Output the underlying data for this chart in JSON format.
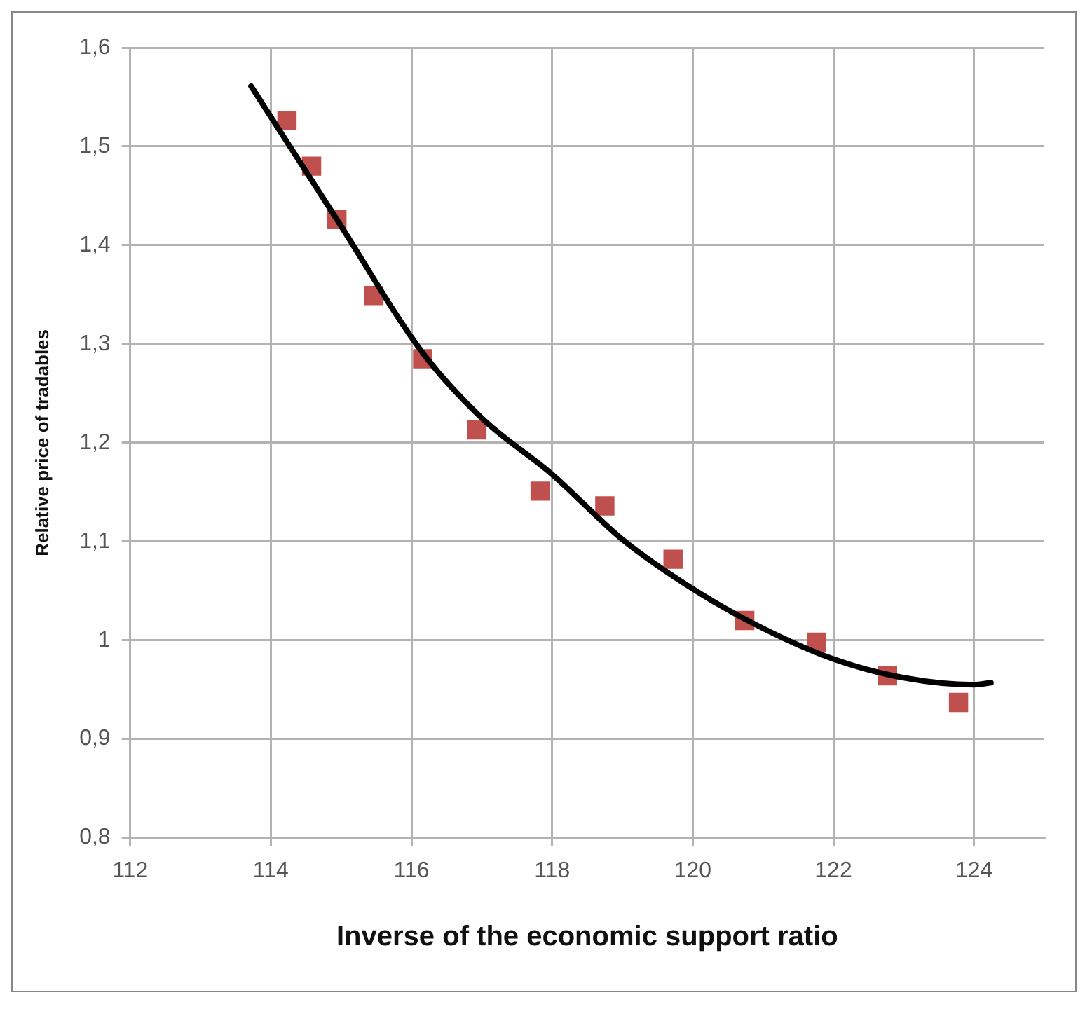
{
  "chart_data": {
    "type": "scatter",
    "xlabel": "Inverse of the economic support ratio",
    "ylabel": "Relative price of tradables",
    "xlim": [
      112,
      125
    ],
    "xticks": [
      112,
      114,
      116,
      118,
      120,
      122,
      124
    ],
    "ylim": [
      0.8,
      1.6
    ],
    "yticks": [
      {
        "value": 0.8,
        "label": "0,8"
      },
      {
        "value": 0.9,
        "label": "0,9"
      },
      {
        "value": 1,
        "label": "1"
      },
      {
        "value": 1.1,
        "label": "1,1"
      },
      {
        "value": 1.2,
        "label": "1,2"
      },
      {
        "value": 1.3,
        "label": "1,3"
      },
      {
        "value": 1.4,
        "label": "1,4"
      },
      {
        "value": 1.5,
        "label": "1,5"
      },
      {
        "value": 1.6,
        "label": "1,6"
      }
    ],
    "grid": true,
    "marker": "square",
    "series": [
      {
        "type": "scatter",
        "color": "#c0504d",
        "x": [
          114.23,
          114.58,
          114.94,
          115.46,
          116.16,
          116.93,
          117.83,
          118.75,
          119.72,
          120.74,
          121.76,
          122.77,
          123.78
        ],
        "values": [
          1.526,
          1.48,
          1.426,
          1.349,
          1.285,
          1.213,
          1.151,
          1.136,
          1.082,
          1.02,
          0.998,
          0.964,
          0.937
        ]
      },
      {
        "type": "line",
        "color": "#000000",
        "marker": "none",
        "line_style": "solid",
        "x": [
          113.72,
          114.94,
          116.16,
          117,
          118,
          119,
          120,
          121,
          122,
          123,
          124,
          124.24
        ],
        "values": [
          1.561,
          1.426,
          1.291,
          1.225,
          1.168,
          1.102,
          1.052,
          1.012,
          0.981,
          0.962,
          0.955,
          0.957
        ]
      }
    ]
  }
}
